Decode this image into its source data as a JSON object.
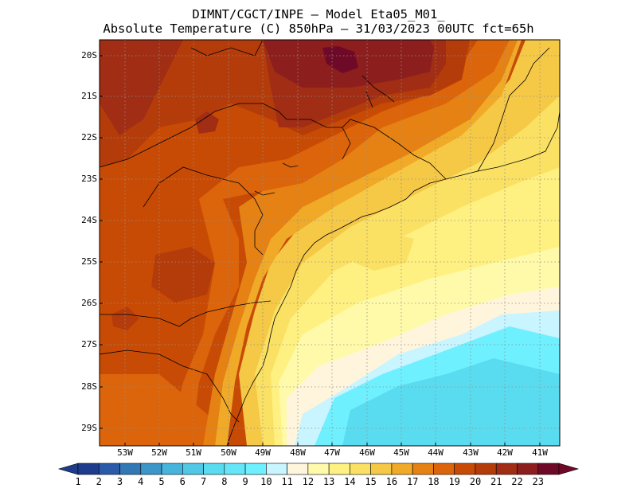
{
  "header": {
    "line1": "DIMNT/CGCT/INPE –  Model Eta05_M01_",
    "line2": "Absolute Temperature (C) 850hPa –  31/03/2023 00UTC fct=65h"
  },
  "map": {
    "lat_labels": [
      "20S",
      "21S",
      "22S",
      "23S",
      "24S",
      "25S",
      "26S",
      "27S",
      "28S",
      "29S"
    ],
    "lon_labels": [
      "53W",
      "52W",
      "51W",
      "50W",
      "49W",
      "48W",
      "47W",
      "46W",
      "45W",
      "44W",
      "43W",
      "42W",
      "41W"
    ],
    "grid": "dotted",
    "lat_range": [
      -29.4,
      -19.9
    ],
    "lon_range": [
      -53.4,
      -40.6
    ]
  },
  "colorbar": {
    "labels": [
      "1",
      "2",
      "3",
      "4",
      "5",
      "6",
      "7",
      "8",
      "9",
      "10",
      "11",
      "12",
      "13",
      "14",
      "15",
      "16",
      "17",
      "18",
      "19",
      "20",
      "21",
      "22",
      "23"
    ],
    "colors": [
      "#1e3c8c",
      "#2a5aa8",
      "#3278b4",
      "#3c96c8",
      "#46b4dc",
      "#50c8e6",
      "#5adcf0",
      "#64e6f8",
      "#6ef0ff",
      "#c8f5ff",
      "#fff5dc",
      "#fffaaa",
      "#fff082",
      "#fae164",
      "#f5c846",
      "#f0aa28",
      "#e68214",
      "#dc640a",
      "#c84b05",
      "#b43c0a",
      "#a02d14",
      "#8c1e1e",
      "#6e0a28"
    ]
  }
}
